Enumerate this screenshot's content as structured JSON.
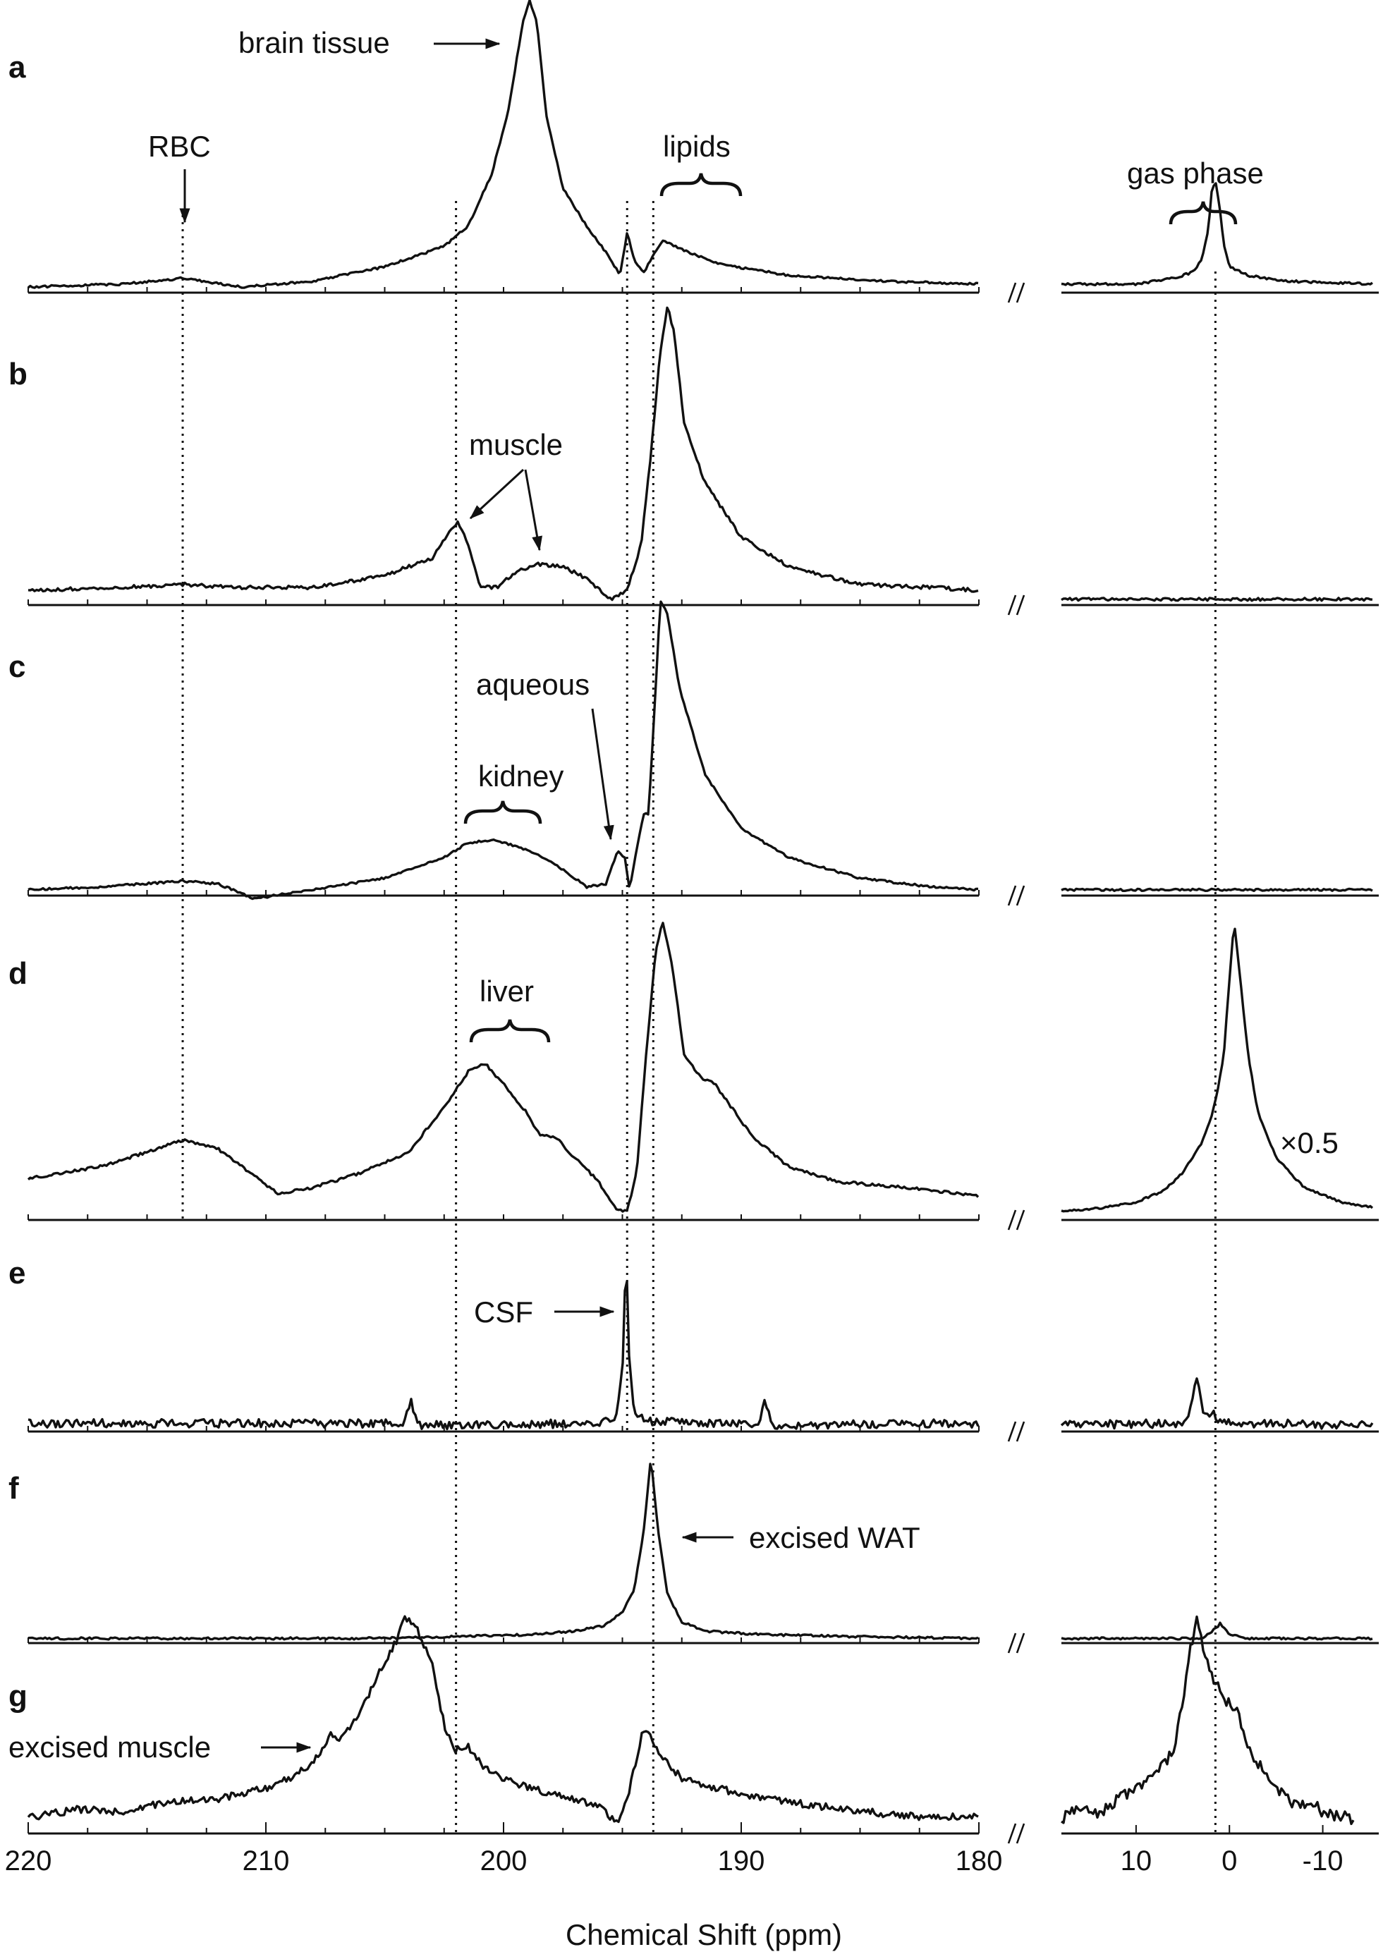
{
  "chart_data": {
    "type": "line",
    "title": "",
    "xlabel": "Chemical Shift (ppm)",
    "ylabel": "",
    "axes": [
      {
        "id": "main",
        "xlim": [
          220,
          180
        ],
        "ticks": [
          220,
          210,
          200,
          190,
          180
        ],
        "tick_labels": [
          "220",
          "210",
          "200",
          "190",
          "180"
        ]
      },
      {
        "id": "gas",
        "xlim": [
          18,
          -16
        ],
        "ticks": [
          10,
          0,
          -10
        ],
        "tick_labels": [
          "10",
          "0",
          "-10"
        ]
      }
    ],
    "axis_break": "//",
    "reference_lines_ppm": {
      "main": [
        213.5,
        202,
        194.8,
        193.7
      ],
      "gas": [
        1.5
      ]
    },
    "panels": [
      {
        "letter": "a",
        "main": [
          [
            220,
            0.01
          ],
          [
            216,
            0.02
          ],
          [
            213.5,
            0.04
          ],
          [
            211,
            0.01
          ],
          [
            208,
            0.03
          ],
          [
            205,
            0.08
          ],
          [
            202.5,
            0.15
          ],
          [
            201.5,
            0.22
          ],
          [
            200.5,
            0.4
          ],
          [
            199.8,
            0.62
          ],
          [
            199.2,
            0.92
          ],
          [
            198.9,
            1.0
          ],
          [
            198.6,
            0.93
          ],
          [
            198.2,
            0.6
          ],
          [
            197.5,
            0.35
          ],
          [
            196.5,
            0.22
          ],
          [
            195.6,
            0.12
          ],
          [
            195.1,
            0.05
          ],
          [
            194.8,
            0.2
          ],
          [
            194.5,
            0.1
          ],
          [
            194.1,
            0.06
          ],
          [
            193.7,
            0.12
          ],
          [
            193.3,
            0.17
          ],
          [
            192.5,
            0.14
          ],
          [
            191,
            0.09
          ],
          [
            188,
            0.05
          ],
          [
            184,
            0.03
          ],
          [
            180,
            0.02
          ]
        ],
        "gas": [
          [
            18,
            0.02
          ],
          [
            10,
            0.02
          ],
          [
            6,
            0.04
          ],
          [
            4,
            0.06
          ],
          [
            3,
            0.1
          ],
          [
            2.3,
            0.2
          ],
          [
            1.9,
            0.34
          ],
          [
            1.5,
            0.38
          ],
          [
            1.1,
            0.3
          ],
          [
            0.6,
            0.16
          ],
          [
            0,
            0.08
          ],
          [
            -2,
            0.05
          ],
          [
            -6,
            0.03
          ],
          [
            -16,
            0.02
          ]
        ],
        "gas_scale": ""
      },
      {
        "letter": "b",
        "main": [
          [
            220,
            0.04
          ],
          [
            216,
            0.05
          ],
          [
            213.5,
            0.06
          ],
          [
            211,
            0.05
          ],
          [
            208,
            0.05
          ],
          [
            205,
            0.09
          ],
          [
            203,
            0.15
          ],
          [
            202.2,
            0.25
          ],
          [
            201.9,
            0.27
          ],
          [
            201.5,
            0.2
          ],
          [
            201,
            0.05
          ],
          [
            200.3,
            0.05
          ],
          [
            199.5,
            0.1
          ],
          [
            198.6,
            0.13
          ],
          [
            197.5,
            0.12
          ],
          [
            196.5,
            0.08
          ],
          [
            195.5,
            0.01
          ],
          [
            194.8,
            0.04
          ],
          [
            194.2,
            0.2
          ],
          [
            193.8,
            0.5
          ],
          [
            193.4,
            0.85
          ],
          [
            193.1,
            1.0
          ],
          [
            192.8,
            0.9
          ],
          [
            192.4,
            0.6
          ],
          [
            191.5,
            0.4
          ],
          [
            190,
            0.22
          ],
          [
            188,
            0.12
          ],
          [
            185,
            0.06
          ],
          [
            182,
            0.05
          ],
          [
            180,
            0.04
          ]
        ],
        "gas": [
          [
            18,
            0.01
          ],
          [
            -16,
            0.01
          ]
        ],
        "gas_scale": ""
      },
      {
        "letter": "c",
        "main": [
          [
            220,
            0.01
          ],
          [
            217,
            0.02
          ],
          [
            213.5,
            0.04
          ],
          [
            212,
            0.03
          ],
          [
            210.5,
            -0.02
          ],
          [
            208,
            0.01
          ],
          [
            205,
            0.05
          ],
          [
            202.5,
            0.12
          ],
          [
            201.5,
            0.17
          ],
          [
            200.5,
            0.18
          ],
          [
            199.5,
            0.16
          ],
          [
            198.5,
            0.13
          ],
          [
            197.5,
            0.08
          ],
          [
            196.5,
            0.02
          ],
          [
            195.7,
            0.03
          ],
          [
            195.2,
            0.14
          ],
          [
            194.9,
            0.12
          ],
          [
            194.7,
            0.01
          ],
          [
            194.4,
            0.15
          ],
          [
            194.1,
            0.27
          ],
          [
            193.9,
            0.27
          ],
          [
            193.7,
            0.55
          ],
          [
            193.4,
            1.0
          ],
          [
            193.1,
            0.95
          ],
          [
            192.6,
            0.7
          ],
          [
            191.5,
            0.4
          ],
          [
            190,
            0.22
          ],
          [
            188,
            0.12
          ],
          [
            185,
            0.05
          ],
          [
            182,
            0.02
          ],
          [
            180,
            0.01
          ]
        ],
        "gas": [
          [
            18,
            0.01
          ],
          [
            -16,
            0.01
          ]
        ],
        "gas_scale": ""
      },
      {
        "letter": "d",
        "main": [
          [
            220,
            0.13
          ],
          [
            217,
            0.17
          ],
          [
            215,
            0.22
          ],
          [
            213.5,
            0.26
          ],
          [
            212,
            0.23
          ],
          [
            210.5,
            0.14
          ],
          [
            209.5,
            0.08
          ],
          [
            208,
            0.1
          ],
          [
            206,
            0.15
          ],
          [
            204,
            0.22
          ],
          [
            202.5,
            0.37
          ],
          [
            201.5,
            0.49
          ],
          [
            200.8,
            0.52
          ],
          [
            200,
            0.45
          ],
          [
            199,
            0.35
          ],
          [
            198.5,
            0.28
          ],
          [
            197.8,
            0.27
          ],
          [
            197,
            0.2
          ],
          [
            196,
            0.12
          ],
          [
            195.3,
            0.03
          ],
          [
            194.8,
            0.02
          ],
          [
            194.4,
            0.15
          ],
          [
            194,
            0.55
          ],
          [
            193.6,
            0.9
          ],
          [
            193.3,
            1.0
          ],
          [
            192.9,
            0.85
          ],
          [
            192.4,
            0.55
          ],
          [
            191.7,
            0.47
          ],
          [
            191.2,
            0.46
          ],
          [
            190.5,
            0.38
          ],
          [
            189.5,
            0.27
          ],
          [
            188,
            0.17
          ],
          [
            186,
            0.12
          ],
          [
            183,
            0.1
          ],
          [
            180,
            0.07
          ]
        ],
        "gas": [
          [
            18,
            0.02
          ],
          [
            14,
            0.03
          ],
          [
            10,
            0.05
          ],
          [
            7,
            0.09
          ],
          [
            5,
            0.15
          ],
          [
            3,
            0.25
          ],
          [
            2,
            0.33
          ],
          [
            1.3,
            0.42
          ],
          [
            0.6,
            0.55
          ],
          [
            0,
            0.8
          ],
          [
            -0.5,
            1.0
          ],
          [
            -1,
            0.85
          ],
          [
            -2,
            0.55
          ],
          [
            -3,
            0.36
          ],
          [
            -5,
            0.2
          ],
          [
            -8,
            0.1
          ],
          [
            -12,
            0.05
          ],
          [
            -16,
            0.03
          ]
        ],
        "gas_scale": "×0.5"
      },
      {
        "letter": "e",
        "main": [
          [
            220,
            0.03
          ],
          [
            212,
            0.03
          ],
          [
            204.2,
            0.03
          ],
          [
            203.9,
            0.15
          ],
          [
            203.6,
            0.02
          ],
          [
            196,
            0.03
          ],
          [
            195.3,
            0.05
          ],
          [
            195,
            0.3
          ],
          [
            194.85,
            1.0
          ],
          [
            194.7,
            0.35
          ],
          [
            194.5,
            0.1
          ],
          [
            194,
            0.04
          ],
          [
            189.3,
            0.03
          ],
          [
            189,
            0.15
          ],
          [
            188.7,
            0.02
          ],
          [
            180,
            0.03
          ]
        ],
        "gas": [
          [
            18,
            0.02
          ],
          [
            5,
            0.03
          ],
          [
            4.2,
            0.1
          ],
          [
            3.5,
            0.3
          ],
          [
            2.8,
            0.1
          ],
          [
            1.7,
            0.08
          ],
          [
            0.8,
            0.03
          ],
          [
            -16,
            0.02
          ]
        ],
        "gas_scale": ""
      },
      {
        "letter": "f",
        "main": [
          [
            220,
            0.01
          ],
          [
            206,
            0.01
          ],
          [
            202,
            0.02
          ],
          [
            199,
            0.03
          ],
          [
            197,
            0.05
          ],
          [
            195.8,
            0.08
          ],
          [
            195,
            0.15
          ],
          [
            194.5,
            0.28
          ],
          [
            194.1,
            0.6
          ],
          [
            193.8,
            1.0
          ],
          [
            193.5,
            0.6
          ],
          [
            193.1,
            0.25
          ],
          [
            192.5,
            0.1
          ],
          [
            191.5,
            0.05
          ],
          [
            189,
            0.03
          ],
          [
            185,
            0.02
          ],
          [
            180,
            0.01
          ]
        ],
        "gas": [
          [
            18,
            0.01
          ],
          [
            3,
            0.01
          ],
          [
            2,
            0.04
          ],
          [
            1,
            0.09
          ],
          [
            0,
            0.03
          ],
          [
            -2,
            0.01
          ],
          [
            -16,
            0.01
          ]
        ],
        "gas_scale": ""
      },
      {
        "letter": "g",
        "main": [
          [
            220,
            0.06
          ],
          [
            218,
            0.1
          ],
          [
            216,
            0.09
          ],
          [
            214,
            0.14
          ],
          [
            212,
            0.15
          ],
          [
            210,
            0.2
          ],
          [
            209,
            0.25
          ],
          [
            208,
            0.32
          ],
          [
            207.3,
            0.45
          ],
          [
            206.8,
            0.43
          ],
          [
            206,
            0.56
          ],
          [
            205.3,
            0.74
          ],
          [
            204.5,
            0.9
          ],
          [
            204.2,
            1.0
          ],
          [
            203.7,
            0.97
          ],
          [
            203,
            0.78
          ],
          [
            202.5,
            0.5
          ],
          [
            202,
            0.38
          ],
          [
            201.5,
            0.4
          ],
          [
            201,
            0.32
          ],
          [
            200,
            0.24
          ],
          [
            198.5,
            0.19
          ],
          [
            197,
            0.15
          ],
          [
            195.8,
            0.1
          ],
          [
            195.2,
            0.03
          ],
          [
            194.7,
            0.19
          ],
          [
            194.2,
            0.45
          ],
          [
            193.9,
            0.47
          ],
          [
            193.4,
            0.35
          ],
          [
            192.5,
            0.25
          ],
          [
            191,
            0.2
          ],
          [
            189,
            0.15
          ],
          [
            187,
            0.12
          ],
          [
            184,
            0.08
          ],
          [
            182,
            0.06
          ],
          [
            180,
            0.07
          ]
        ],
        "gas": [
          [
            18,
            0.05
          ],
          [
            16,
            0.12
          ],
          [
            14,
            0.08
          ],
          [
            12,
            0.15
          ],
          [
            10,
            0.2
          ],
          [
            8,
            0.25
          ],
          [
            6,
            0.38
          ],
          [
            5,
            0.6
          ],
          [
            4.2,
            0.85
          ],
          [
            3.5,
            1.0
          ],
          [
            2.5,
            0.82
          ],
          [
            1.5,
            0.7
          ],
          [
            0.5,
            0.62
          ],
          [
            -1,
            0.55
          ],
          [
            -2,
            0.4
          ],
          [
            -3,
            0.32
          ],
          [
            -5,
            0.2
          ],
          [
            -7,
            0.12
          ],
          [
            -9,
            0.13
          ],
          [
            -10,
            0.08
          ],
          [
            -12,
            0.07
          ],
          [
            -13.5,
            0.05
          ]
        ],
        "gas_scale": ""
      }
    ],
    "annotations": [
      {
        "id": "brain_tissue",
        "text": "brain tissue"
      },
      {
        "id": "rbc",
        "text": "RBC"
      },
      {
        "id": "lipids",
        "text": "lipids"
      },
      {
        "id": "gas_phase",
        "text": "gas phase"
      },
      {
        "id": "muscle",
        "text": "muscle"
      },
      {
        "id": "aqueous",
        "text": "aqueous"
      },
      {
        "id": "kidney",
        "text": "kidney"
      },
      {
        "id": "liver",
        "text": "liver"
      },
      {
        "id": "csf",
        "text": "CSF"
      },
      {
        "id": "excised_wat",
        "text": "excised WAT"
      },
      {
        "id": "excised_muscle",
        "text": "excised muscle"
      }
    ]
  }
}
